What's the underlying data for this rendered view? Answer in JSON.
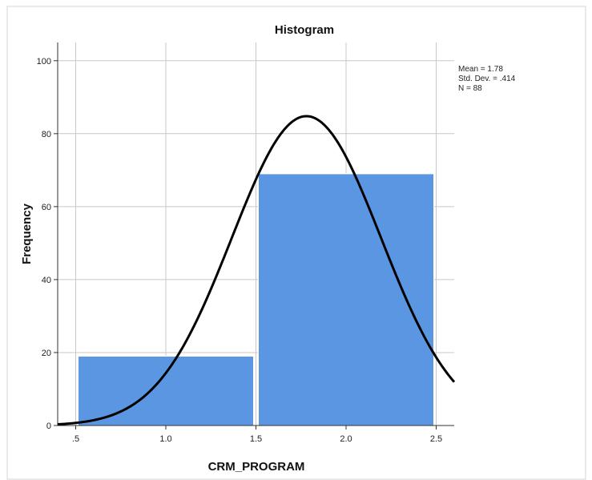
{
  "chart_data": {
    "type": "bar",
    "title": "Histogram",
    "xlabel": "CRM_PROGRAM",
    "ylabel": "Frequency",
    "bins": [
      {
        "start": 0.5,
        "end": 1.5,
        "value": 19
      },
      {
        "start": 1.5,
        "end": 2.5,
        "value": 69
      }
    ],
    "xlim": [
      0.4,
      2.6
    ],
    "ylim": [
      0,
      105
    ],
    "x_ticks": [
      {
        "v": 0.5,
        "label": ".5"
      },
      {
        "v": 1.0,
        "label": "1.0"
      },
      {
        "v": 1.5,
        "label": "1.5"
      },
      {
        "v": 2.0,
        "label": "2.0"
      },
      {
        "v": 2.5,
        "label": "2.5"
      }
    ],
    "y_ticks": [
      {
        "v": 0,
        "label": "0"
      },
      {
        "v": 20,
        "label": "20"
      },
      {
        "v": 40,
        "label": "40"
      },
      {
        "v": 60,
        "label": "60"
      },
      {
        "v": 80,
        "label": "80"
      },
      {
        "v": 100,
        "label": "100"
      }
    ],
    "normal_curve": {
      "mean": 1.78,
      "std": 0.414,
      "n": 88,
      "bin_width": 1.0
    },
    "stats": {
      "mean_text": "Mean = 1.78",
      "std_text": "Std. Dev. = .414",
      "n_text": "N = 88"
    },
    "bar_color": "#5b96e3",
    "grid": true,
    "legend_position": "top-right"
  }
}
